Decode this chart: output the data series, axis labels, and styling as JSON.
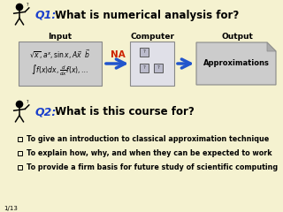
{
  "bg_color": "#f5f2d0",
  "title1_q": "Q1:",
  "title1_rest": " What is numerical analysis for?",
  "title2_q": "Q2:",
  "title2_rest": " What is this course for?",
  "q_color": "#1a3fcc",
  "input_label": "Input",
  "computer_label": "Computer",
  "output_label": "Output",
  "na_label": "NA",
  "na_color": "#cc2200",
  "output_box_text": "Approximations",
  "bullet1": "To give an introduction to classical approximation technique",
  "bullet2": "To explain how, why, and when they can be expected to work",
  "bullet3": "To provide a firm basis for future study of scientific computing",
  "footer": "1/13",
  "arrow_color": "#2255cc",
  "box_bg": "#cccccc",
  "output_box_bg": "#cccccc",
  "text_color": "#000000",
  "figure_scale": [
    0.0,
    320.0,
    0.0,
    240.0
  ]
}
